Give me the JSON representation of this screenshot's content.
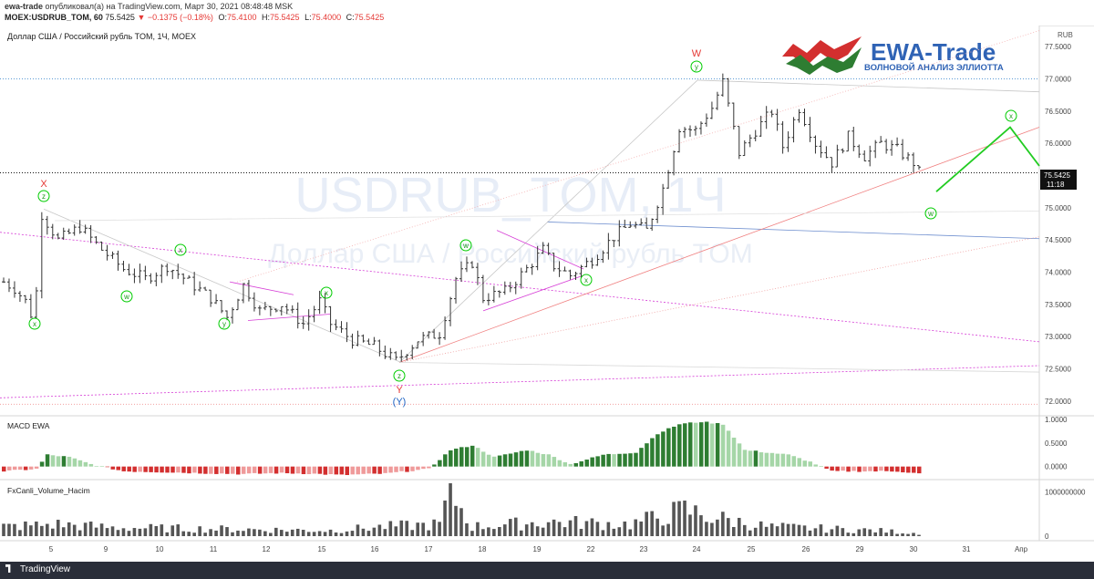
{
  "header": {
    "publisher": "ewa-trade",
    "published_text": "опубликовал(а) на TradingView.com, Март 30, 2021 08:48:48 MSK",
    "symbol_line": "MOEX:USDRUB_TOM, 60",
    "last": "75.5425",
    "change": "−0.1375 (−0.18%)",
    "o_label": "O:",
    "o": "75.4100",
    "h_label": "H:",
    "h": "75.5425",
    "l_label": "L:",
    "l": "75.4000",
    "c_label": "C:",
    "c": "75.5425"
  },
  "chart_title": "Доллар США / Российский рубль TOM, 1Ч, MOEX",
  "currency": "RUB",
  "watermark": {
    "symbol": "USDRUB_TOM, 1Ч",
    "name": "Доллар США / Российский рубль TOM"
  },
  "logo": {
    "brand": "EWA-Trade",
    "tagline": "ВОЛНОВОЙ АНАЛИЗ ЭЛЛИОТТА"
  },
  "price_label": {
    "value": "75.5425",
    "timer": "11:18"
  },
  "footer": {
    "brand": "TradingView"
  },
  "colors": {
    "up": "#222222",
    "macd_pos_strong": "#2e7d32",
    "macd_pos_light": "#a5d6a7",
    "macd_neg_strong": "#d32f2f",
    "macd_neg_light": "#ef9a9a",
    "wave_green": "#00cc00",
    "wave_red": "#e53935",
    "wave_blue": "#1e63c4"
  },
  "chart_data": [
    {
      "type": "candlestick",
      "title": "Доллар США / Российский рубль TOM, 1Ч, MOEX",
      "ylim": [
        71.8,
        77.8
      ],
      "y_ticks": [
        "72.0000",
        "72.5000",
        "73.0000",
        "73.5000",
        "74.0000",
        "74.5000",
        "75.0000",
        "75.5000",
        "76.0000",
        "76.5000",
        "77.0000",
        "77.5000"
      ],
      "x_ticks": [
        "5",
        "9",
        "10",
        "11",
        "12",
        "15",
        "16",
        "17",
        "18",
        "19",
        "22",
        "23",
        "24",
        "25",
        "26",
        "29",
        "30",
        "31",
        "Апр"
      ],
      "close_path_points": [
        [
          0,
          73.85
        ],
        [
          2,
          73.75
        ],
        [
          4,
          73.55
        ],
        [
          5,
          73.35
        ],
        [
          6,
          73.7
        ],
        [
          7,
          74.9
        ],
        [
          10,
          74.5
        ],
        [
          14,
          74.7
        ],
        [
          18,
          74.35
        ],
        [
          22,
          74.05
        ],
        [
          26,
          73.9
        ],
        [
          30,
          74.1
        ],
        [
          34,
          73.85
        ],
        [
          38,
          73.6
        ],
        [
          41,
          73.3
        ],
        [
          44,
          73.8
        ],
        [
          47,
          73.4
        ],
        [
          51,
          73.5
        ],
        [
          55,
          73.2
        ],
        [
          58,
          73.55
        ],
        [
          60,
          73.2
        ],
        [
          64,
          72.95
        ],
        [
          68,
          72.85
        ],
        [
          72,
          72.62
        ],
        [
          76,
          72.95
        ],
        [
          80,
          73.05
        ],
        [
          83,
          73.9
        ],
        [
          86,
          74.15
        ],
        [
          88,
          73.6
        ],
        [
          92,
          73.7
        ],
        [
          96,
          74.05
        ],
        [
          99,
          74.35
        ],
        [
          101,
          74.1
        ],
        [
          104,
          73.95
        ],
        [
          108,
          74.2
        ],
        [
          112,
          74.55
        ],
        [
          115,
          74.75
        ],
        [
          118,
          74.65
        ],
        [
          121,
          75.3
        ],
        [
          124,
          76.25
        ],
        [
          127,
          76.2
        ],
        [
          130,
          76.55
        ],
        [
          132,
          76.95
        ],
        [
          135,
          75.85
        ],
        [
          138,
          76.2
        ],
        [
          141,
          76.5
        ],
        [
          143,
          75.95
        ],
        [
          146,
          76.55
        ],
        [
          149,
          76.0
        ],
        [
          152,
          75.7
        ],
        [
          155,
          76.1
        ],
        [
          158,
          75.8
        ],
        [
          161,
          76.0
        ],
        [
          164,
          75.9
        ],
        [
          167,
          75.7
        ],
        [
          168,
          75.55
        ]
      ],
      "candle_count": 169,
      "last_value": 75.5425,
      "levels": [
        77.0,
        75.5425,
        71.95
      ]
    },
    {
      "type": "bar",
      "title": "MACD EWA",
      "ylim": [
        -0.2,
        1.0
      ],
      "y_ticks": [
        "1.0000",
        "0.5000",
        "0.0000"
      ],
      "series_points": [
        [
          0,
          -0.1
        ],
        [
          6,
          -0.05
        ],
        [
          8,
          0.25
        ],
        [
          12,
          0.2
        ],
        [
          16,
          0.05
        ],
        [
          22,
          -0.1
        ],
        [
          30,
          -0.12
        ],
        [
          36,
          -0.14
        ],
        [
          44,
          -0.16
        ],
        [
          50,
          -0.14
        ],
        [
          56,
          -0.15
        ],
        [
          62,
          -0.18
        ],
        [
          70,
          -0.15
        ],
        [
          78,
          -0.05
        ],
        [
          82,
          0.35
        ],
        [
          86,
          0.45
        ],
        [
          90,
          0.2
        ],
        [
          96,
          0.35
        ],
        [
          100,
          0.25
        ],
        [
          104,
          0.05
        ],
        [
          110,
          0.25
        ],
        [
          116,
          0.3
        ],
        [
          120,
          0.7
        ],
        [
          124,
          0.9
        ],
        [
          128,
          0.95
        ],
        [
          132,
          0.9
        ],
        [
          136,
          0.35
        ],
        [
          140,
          0.3
        ],
        [
          144,
          0.25
        ],
        [
          148,
          0.1
        ],
        [
          152,
          -0.1
        ],
        [
          158,
          -0.1
        ],
        [
          164,
          -0.1
        ],
        [
          168,
          -0.15
        ]
      ]
    },
    {
      "type": "bar",
      "title": "FxCanli_Volume_Hacim",
      "ylim": [
        0,
        1200000000
      ],
      "y_ticks": [
        "1000000000",
        "0"
      ],
      "volume_points": [
        [
          0,
          0.2
        ],
        [
          10,
          0.25
        ],
        [
          20,
          0.18
        ],
        [
          40,
          0.15
        ],
        [
          60,
          0.12
        ],
        [
          70,
          0.2
        ],
        [
          80,
          0.25
        ],
        [
          82,
          0.95
        ],
        [
          86,
          0.2
        ],
        [
          100,
          0.3
        ],
        [
          115,
          0.25
        ],
        [
          125,
          0.55
        ],
        [
          130,
          0.4
        ],
        [
          140,
          0.2
        ],
        [
          160,
          0.12
        ],
        [
          168,
          0.06
        ]
      ]
    }
  ],
  "wave_labels": {
    "X": "X",
    "z": "z",
    "x": "x",
    "w": "w",
    "y": "y",
    "W": "W",
    "Y": "Y",
    "Yp": "(Y)"
  }
}
